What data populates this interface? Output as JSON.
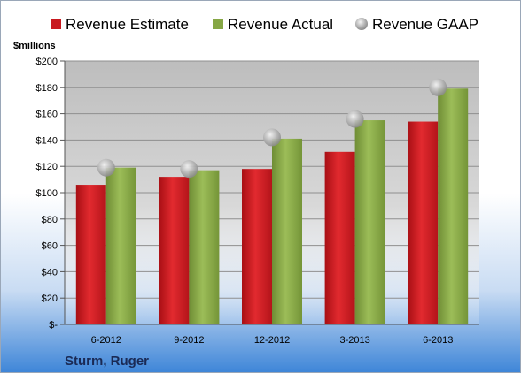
{
  "chart_data": {
    "type": "bar",
    "title": "",
    "company": "Sturm, Ruger",
    "ylabel": "$millions",
    "ylim": [
      0,
      200
    ],
    "yticks": [
      0,
      20,
      40,
      60,
      80,
      100,
      120,
      140,
      160,
      180,
      200
    ],
    "ytick_labels": [
      "$-",
      "$20",
      "$40",
      "$60",
      "$80",
      "$100",
      "$120",
      "$140",
      "$160",
      "$180",
      "$200"
    ],
    "categories": [
      "6-2012",
      "9-2012",
      "12-2012",
      "3-2013",
      "6-2013"
    ],
    "series": [
      {
        "name": "Revenue Estimate",
        "kind": "bar",
        "color": "#c8191f",
        "values": [
          106,
          112,
          118,
          131,
          154
        ]
      },
      {
        "name": "Revenue Actual",
        "kind": "bar",
        "color": "#86a745",
        "values": [
          119,
          117,
          141,
          155,
          179
        ]
      },
      {
        "name": "Revenue GAAP",
        "kind": "marker",
        "color": "#a7a7a7",
        "values": [
          119,
          118,
          142,
          156,
          180
        ]
      }
    ],
    "grid": true,
    "legend_position": "top"
  }
}
